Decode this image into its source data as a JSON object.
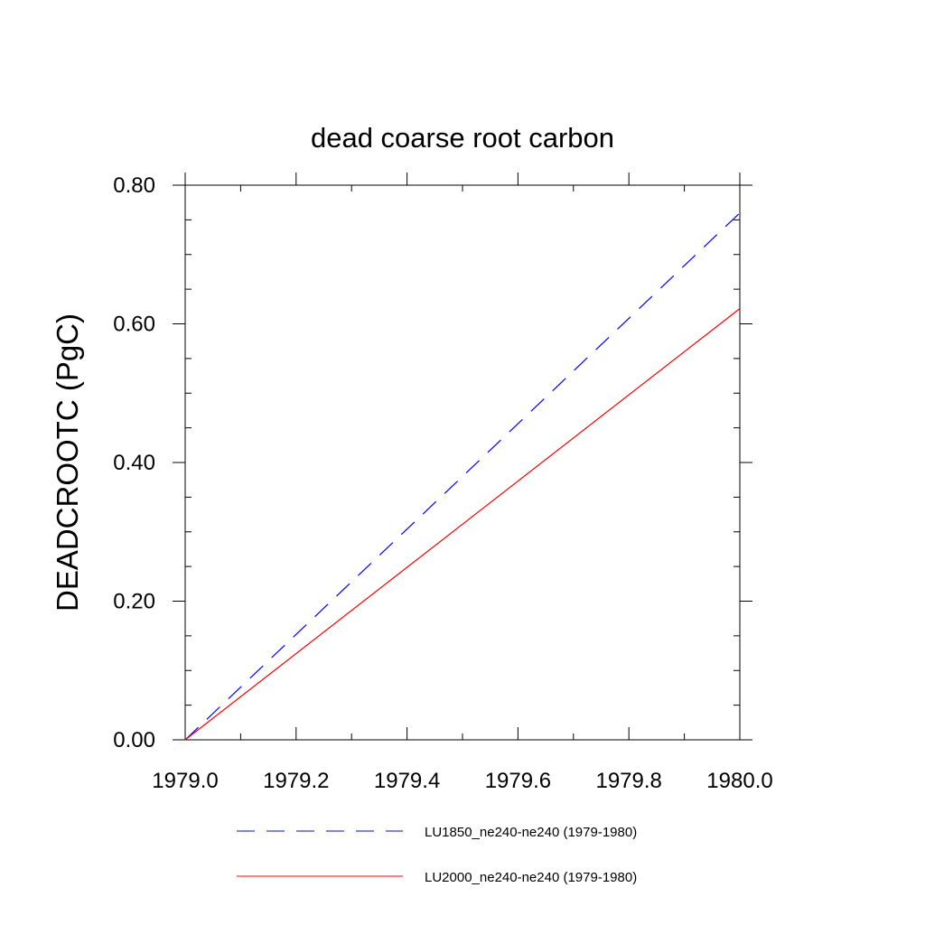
{
  "chart_data": {
    "type": "line",
    "title": "dead coarse root carbon",
    "xlabel": "",
    "ylabel": "DEADCROOTC  (PgC)",
    "xlim": [
      1979.0,
      1980.0
    ],
    "ylim": [
      0.0,
      0.8
    ],
    "x_major_ticks": [
      1979.0,
      1979.2,
      1979.4,
      1979.6,
      1979.8,
      1980.0
    ],
    "x_tick_labels": [
      "1979.0",
      "1979.2",
      "1979.4",
      "1979.6",
      "1979.8",
      "1980.0"
    ],
    "x_minor_step": 0.1,
    "y_major_ticks": [
      0.0,
      0.2,
      0.4,
      0.6,
      0.8
    ],
    "y_tick_labels": [
      "0.00",
      "0.20",
      "0.40",
      "0.60",
      "0.80"
    ],
    "y_minor_step": 0.05,
    "grid": false,
    "legend_position": "bottom",
    "series": [
      {
        "name": "LU1850_ne240-ne240 (1979-1980)",
        "color": "#0000ff",
        "dash": "dashed",
        "x": [
          1979.0,
          1979.5,
          1980.0
        ],
        "y": [
          0.0,
          0.38,
          0.76
        ]
      },
      {
        "name": "LU2000_ne240-ne240 (1979-1980)",
        "color": "#ff0000",
        "dash": "solid",
        "x": [
          1979.0,
          1979.5,
          1980.0
        ],
        "y": [
          0.0,
          0.311,
          0.622
        ]
      }
    ]
  }
}
